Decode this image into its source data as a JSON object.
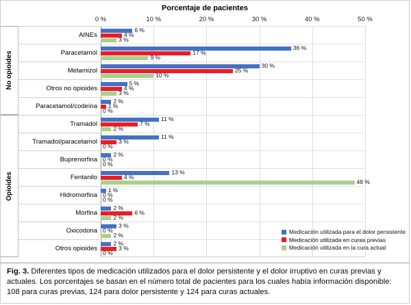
{
  "figure": {
    "caption_label": "Fig. 3.",
    "caption_text": " Diferentes tipos de medicación utilizados para el dolor persistente y el dolor irruptivo en curas previas y actuales. Los porcentajes se basan en el número total de pacientes para los cuales había información disponible: 108 para curas previas, 124 para dolor persistente y 124 para curas actuales."
  },
  "chart_data": {
    "type": "bar",
    "orientation": "horizontal",
    "title": "Porcentaje de pacientes",
    "x_axis": {
      "ticks": [
        "0 %",
        "10 %",
        "20 %",
        "30 %",
        "40 %",
        "50 %"
      ],
      "min": 0,
      "max": 50,
      "unit": "%"
    },
    "grid": true,
    "legend_position": "bottom-right",
    "value_label_suffix": " %",
    "groups": [
      {
        "label": "No opioides",
        "count": 5
      },
      {
        "label": "Opioides",
        "count": 8
      }
    ],
    "categories": [
      "AINEs",
      "Paracetamol",
      "Metamizol",
      "Otros no opioides",
      "Paracetamol/codeína",
      "Tramadol",
      "Tramadol/paracetamol",
      "Buprenorfina",
      "Fentanilo",
      "Hidromorfina",
      "Morfina",
      "Oxicodona",
      "Otros opioides"
    ],
    "series": [
      {
        "name": "Medicación utilizada para el dolor persistente",
        "color": "#4472C4",
        "values": [
          6,
          36,
          30,
          5,
          2,
          11,
          11,
          2,
          13,
          1,
          2,
          3,
          2
        ]
      },
      {
        "name": "Medicación utilizada en curas previas",
        "color": "#ED1C24",
        "values": [
          4,
          17,
          25,
          4,
          1,
          7,
          3,
          0,
          4,
          0,
          6,
          0,
          3
        ]
      },
      {
        "name": "Medicación utilizada en la cura actual",
        "color": "#A9D08E",
        "values": [
          3,
          9,
          10,
          3,
          0,
          2,
          0,
          0,
          48,
          0,
          2,
          2,
          0
        ]
      }
    ]
  }
}
